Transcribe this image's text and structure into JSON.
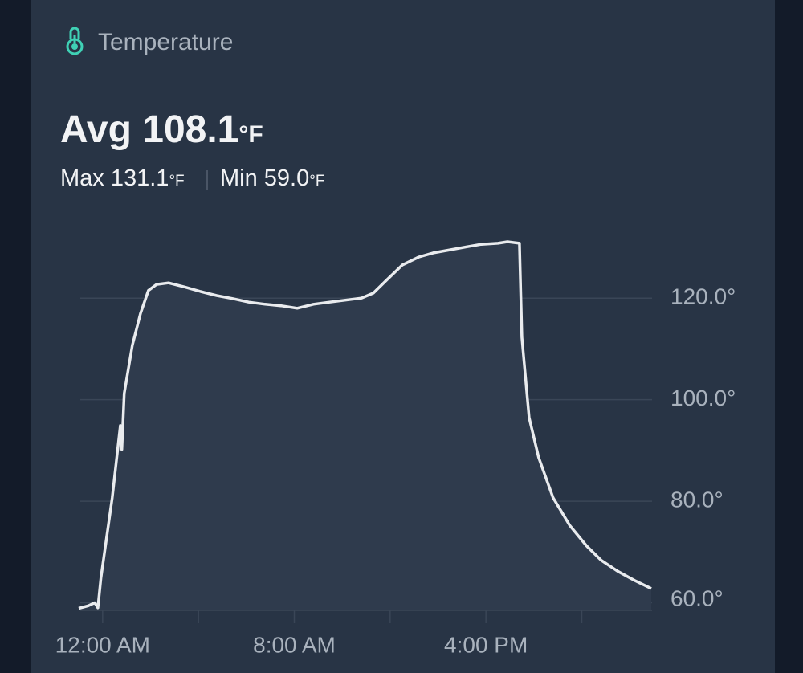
{
  "header": {
    "title": "Temperature"
  },
  "summary": {
    "avg": {
      "label": "Avg",
      "value": "108.1",
      "unit": "°F"
    },
    "max": {
      "label": "Max",
      "value": "131.1",
      "unit": "°F"
    },
    "min": {
      "label": "Min",
      "value": "59.0",
      "unit": "°F"
    }
  },
  "chart_data": {
    "type": "line",
    "x": [
      -1.0,
      -0.6,
      -0.33,
      -0.2,
      -0.07,
      0.07,
      0.4,
      0.74,
      0.8,
      0.9,
      1.24,
      1.58,
      1.91,
      2.25,
      2.75,
      3.42,
      4.09,
      4.76,
      5.43,
      6.1,
      6.78,
      7.45,
      8.12,
      8.8,
      9.47,
      10.14,
      10.8,
      11.3,
      11.8,
      12.5,
      13.2,
      13.8,
      14.5,
      15.2,
      15.8,
      16.5,
      16.9,
      17.4,
      17.5,
      17.8,
      18.2,
      18.8,
      19.5,
      20.2,
      20.8,
      21.5,
      22.2,
      22.9
    ],
    "values": [
      58.9,
      59.4,
      60.0,
      59.0,
      64.9,
      69.6,
      80.7,
      94.9,
      90.2,
      101.2,
      110.7,
      117.0,
      121.5,
      122.7,
      123.0,
      122.2,
      121.3,
      120.5,
      119.9,
      119.2,
      118.8,
      118.5,
      118.0,
      118.8,
      119.2,
      119.6,
      120.0,
      121.0,
      123.3,
      126.5,
      128.1,
      128.9,
      129.5,
      130.1,
      130.6,
      130.8,
      131.1,
      130.8,
      112.3,
      96.5,
      88.6,
      80.7,
      75.2,
      71.2,
      68.4,
      66.2,
      64.4,
      62.8
    ],
    "color": "#e9ebee",
    "xlim": [
      -1.0,
      23.0
    ],
    "xticks": [
      {
        "value": 0,
        "label": "12:00 AM"
      },
      {
        "value": 8,
        "label": "8:00 AM"
      },
      {
        "value": 16,
        "label": "4:00 PM"
      }
    ],
    "xminorticks": [
      4,
      12,
      20
    ],
    "ylim": [
      58.5,
      133
    ],
    "yticks": [
      {
        "value": 60,
        "label": "60.0°"
      },
      {
        "value": 80,
        "label": "80.0°"
      },
      {
        "value": 100,
        "label": "100.0°"
      },
      {
        "value": 120,
        "label": "120.0°"
      }
    ],
    "grid": true
  }
}
